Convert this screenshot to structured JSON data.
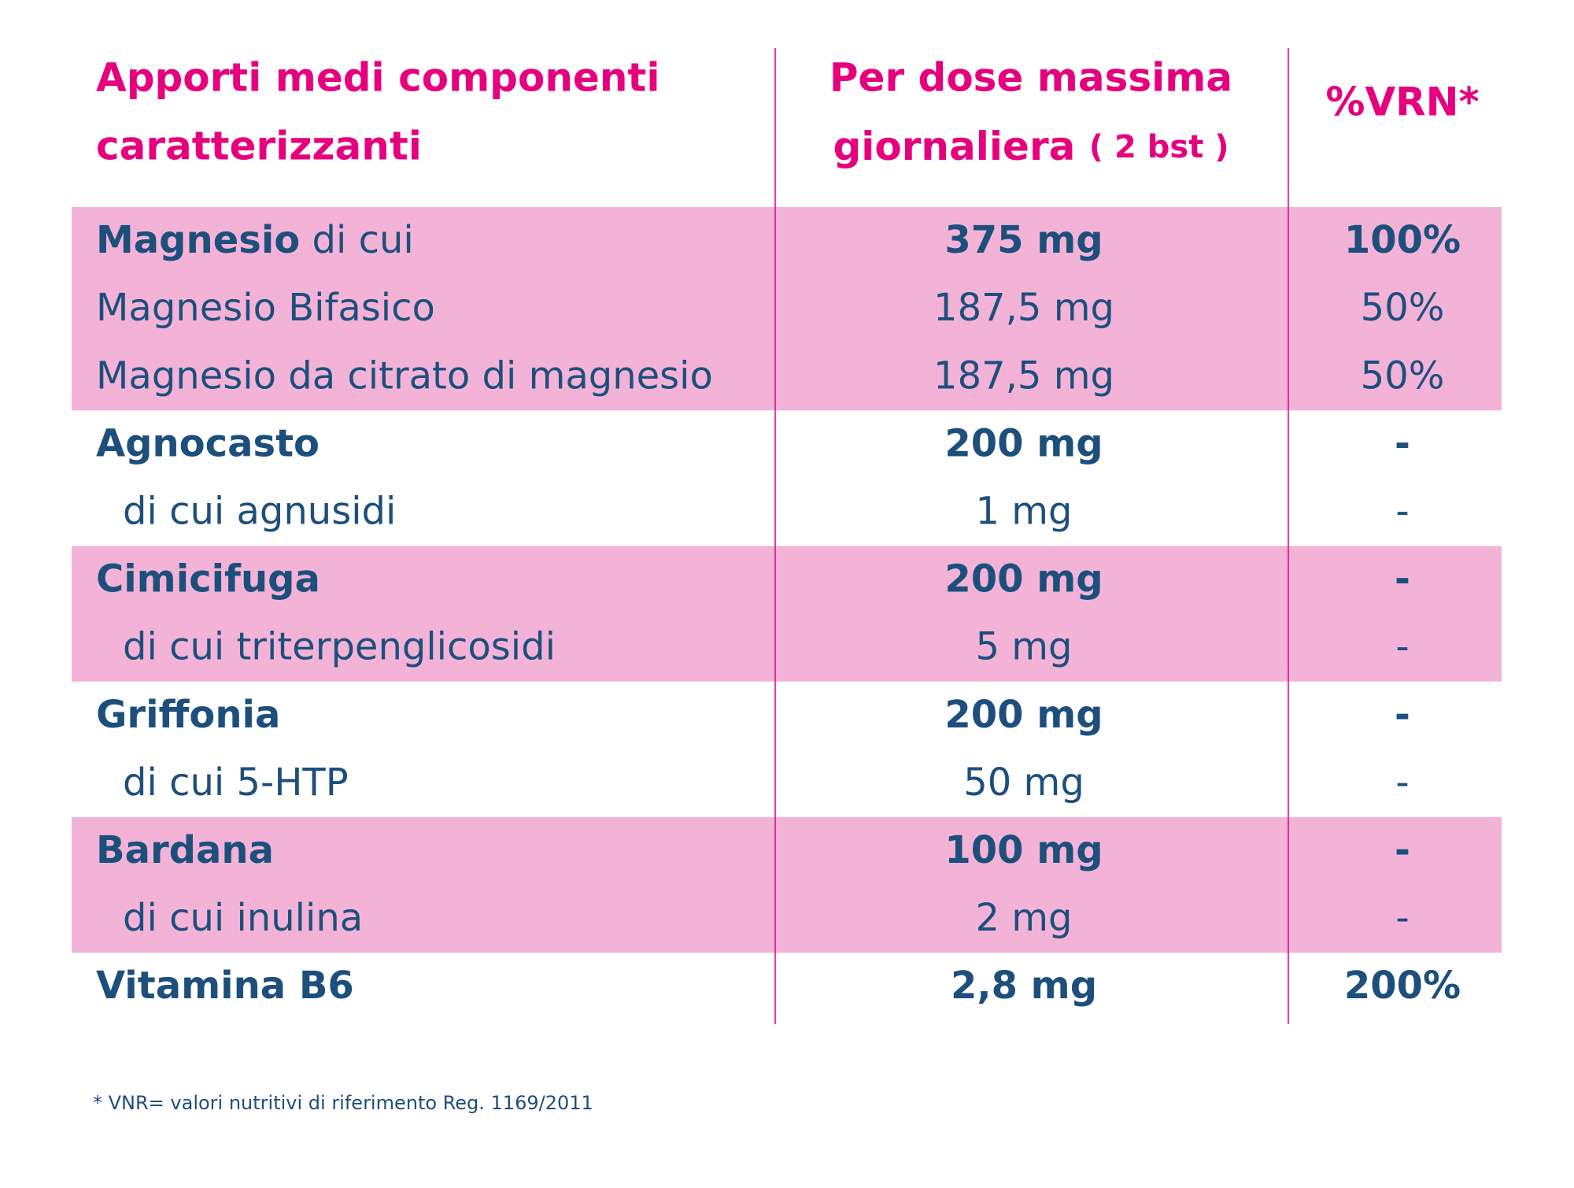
{
  "header": {
    "col1": [
      "Apporti medi componenti",
      "caratterizzanti"
    ],
    "col2": [
      "Per dose massima",
      "giornaliera",
      "( 2 bst )"
    ],
    "col3": "%VRN*"
  },
  "groups": [
    {
      "name": "Magnesio",
      "suffix": "di cui",
      "amount": "375 mg",
      "vrn": "100%",
      "subrows": [
        {
          "name": "Magnesio Bifasico",
          "amount": "187,5 mg",
          "vrn": "50%"
        },
        {
          "name": "Magnesio da citrato di magnesio",
          "amount": "187,5 mg",
          "vrn": "50%"
        }
      ]
    },
    {
      "name": "Agnocasto",
      "amount": "200 mg",
      "vrn": "-",
      "subrows": [
        {
          "name": "di cui agnusidi",
          "amount": "1 mg",
          "vrn": "-"
        }
      ]
    },
    {
      "name": "Cimicifuga",
      "amount": "200 mg",
      "vrn": "-",
      "subrows": [
        {
          "name": "di cui triterpenglicosidi",
          "amount": "5 mg",
          "vrn": "-"
        }
      ]
    },
    {
      "name": "Griffonia",
      "amount": "200 mg",
      "vrn": "-",
      "subrows": [
        {
          "name": "di cui 5-HTP",
          "amount": "50 mg",
          "vrn": "-"
        }
      ]
    },
    {
      "name": "Bardana",
      "amount": "100 mg",
      "vrn": "-",
      "subrows": [
        {
          "name": "di cui inulina",
          "amount": "2 mg",
          "vrn": "-"
        }
      ]
    },
    {
      "name": "Vitamina B6",
      "amount": "2,8 mg",
      "vrn": "200%",
      "subrows": []
    }
  ],
  "footnote": "* VNR= valori nutritivi di riferimento Reg. 1169/2011"
}
